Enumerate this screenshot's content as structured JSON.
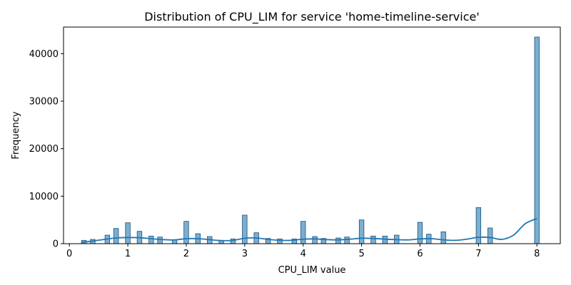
{
  "chart_data": {
    "type": "bar",
    "title": "Distribution of CPU_LIM for service 'home-timeline-service'",
    "xlabel": "CPU_LIM value",
    "ylabel": "Frequency",
    "xlim": [
      -0.1,
      8.4
    ],
    "ylim": [
      0,
      45600
    ],
    "xticks": [
      0,
      1,
      2,
      3,
      4,
      5,
      6,
      7,
      8
    ],
    "yticks": [
      0,
      10000,
      20000,
      30000,
      40000
    ],
    "bin_width": 0.08,
    "bins": [
      {
        "x": 0.25,
        "value": 700
      },
      {
        "x": 0.4,
        "value": 900
      },
      {
        "x": 0.65,
        "value": 1800
      },
      {
        "x": 0.8,
        "value": 3200
      },
      {
        "x": 1.0,
        "value": 4400
      },
      {
        "x": 1.2,
        "value": 2600
      },
      {
        "x": 1.4,
        "value": 1600
      },
      {
        "x": 1.55,
        "value": 1400
      },
      {
        "x": 1.8,
        "value": 800
      },
      {
        "x": 2.0,
        "value": 4700
      },
      {
        "x": 2.2,
        "value": 2100
      },
      {
        "x": 2.4,
        "value": 1500
      },
      {
        "x": 2.6,
        "value": 700
      },
      {
        "x": 2.8,
        "value": 1000
      },
      {
        "x": 3.0,
        "value": 6000
      },
      {
        "x": 3.2,
        "value": 2300
      },
      {
        "x": 3.4,
        "value": 1100
      },
      {
        "x": 3.6,
        "value": 1000
      },
      {
        "x": 3.85,
        "value": 1000
      },
      {
        "x": 4.0,
        "value": 4700
      },
      {
        "x": 4.2,
        "value": 1500
      },
      {
        "x": 4.35,
        "value": 1100
      },
      {
        "x": 4.6,
        "value": 1200
      },
      {
        "x": 4.75,
        "value": 1400
      },
      {
        "x": 5.0,
        "value": 5000
      },
      {
        "x": 5.2,
        "value": 1600
      },
      {
        "x": 5.4,
        "value": 1600
      },
      {
        "x": 5.6,
        "value": 1800
      },
      {
        "x": 6.0,
        "value": 4500
      },
      {
        "x": 6.15,
        "value": 2000
      },
      {
        "x": 6.4,
        "value": 2500
      },
      {
        "x": 7.0,
        "value": 7600
      },
      {
        "x": 7.2,
        "value": 3300
      },
      {
        "x": 8.0,
        "value": 43500
      }
    ],
    "kde": {
      "x": [
        0.2,
        0.4,
        0.6,
        0.8,
        1.0,
        1.2,
        1.4,
        1.6,
        1.8,
        2.0,
        2.2,
        2.4,
        2.6,
        2.8,
        3.0,
        3.2,
        3.4,
        3.6,
        3.8,
        4.0,
        4.2,
        4.4,
        4.6,
        4.8,
        5.0,
        5.2,
        5.4,
        5.6,
        5.8,
        6.0,
        6.2,
        6.4,
        6.6,
        6.8,
        7.0,
        7.2,
        7.4,
        7.6,
        7.8,
        8.0
      ],
      "y": [
        250,
        550,
        900,
        1200,
        1300,
        1250,
        1050,
        850,
        800,
        1050,
        1050,
        850,
        650,
        700,
        1150,
        1200,
        900,
        700,
        700,
        950,
        1000,
        850,
        800,
        950,
        1150,
        1100,
        950,
        850,
        800,
        1000,
        1050,
        800,
        700,
        950,
        1350,
        1300,
        900,
        1800,
        4200,
        5300
      ]
    },
    "grid": false,
    "legend": "none",
    "bar_color": "#5a9bc7",
    "line_color": "#1f77b4"
  }
}
